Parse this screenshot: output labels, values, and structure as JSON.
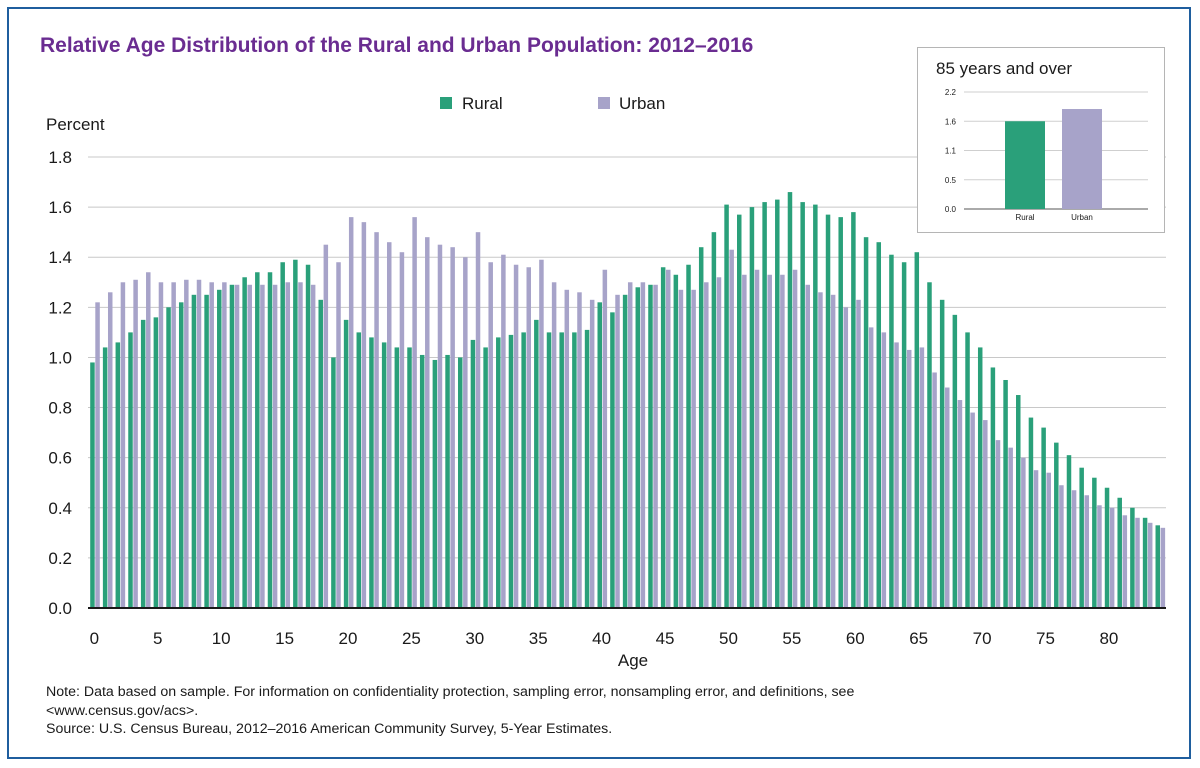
{
  "title": "Relative Age Distribution of the Rural and Urban Population: 2012–2016",
  "notes": {
    "note_line1": "Note: Data based on sample. For information on confidentiality protection, sampling error, nonsampling error, and definitions, see",
    "note_line2": "<www.census.gov/acs>.",
    "source": "Source: U.S. Census Bureau, 2012–2016 American Community Survey, 5-Year Estimates."
  },
  "colors": {
    "rural": "#2aa07a",
    "urban": "#a7a3c9",
    "title": "#6a2c91",
    "frame": "#1f5e9e",
    "grid": "#c8c8c8"
  },
  "chart_data": [
    {
      "type": "bar",
      "ylabel": "Percent",
      "xlabel": "Age",
      "ylim": [
        0,
        1.8
      ],
      "yticks": [
        "0.0",
        "0.2",
        "0.4",
        "0.6",
        "0.8",
        "1.0",
        "1.2",
        "1.4",
        "1.6",
        "1.8"
      ],
      "xtick_labels": [
        "0",
        "5",
        "10",
        "15",
        "20",
        "25",
        "30",
        "35",
        "40",
        "45",
        "50",
        "55",
        "60",
        "65",
        "70",
        "75",
        "80"
      ],
      "grid": true,
      "legend": "top-center",
      "x": [
        0,
        1,
        2,
        3,
        4,
        5,
        6,
        7,
        8,
        9,
        10,
        11,
        12,
        13,
        14,
        15,
        16,
        17,
        18,
        19,
        20,
        21,
        22,
        23,
        24,
        25,
        26,
        27,
        28,
        29,
        30,
        31,
        32,
        33,
        34,
        35,
        36,
        37,
        38,
        39,
        40,
        41,
        42,
        43,
        44,
        45,
        46,
        47,
        48,
        49,
        50,
        51,
        52,
        53,
        54,
        55,
        56,
        57,
        58,
        59,
        60,
        61,
        62,
        63,
        64,
        65,
        66,
        67,
        68,
        69,
        70,
        71,
        72,
        73,
        74,
        75,
        76,
        77,
        78,
        79,
        80,
        81,
        82,
        83,
        84
      ],
      "series": [
        {
          "name": "Rural",
          "values": [
            0.98,
            1.04,
            1.06,
            1.1,
            1.15,
            1.16,
            1.2,
            1.22,
            1.25,
            1.25,
            1.27,
            1.29,
            1.32,
            1.34,
            1.34,
            1.38,
            1.39,
            1.37,
            1.23,
            1.0,
            1.15,
            1.1,
            1.08,
            1.06,
            1.04,
            1.04,
            1.01,
            0.99,
            1.01,
            1.0,
            1.07,
            1.04,
            1.08,
            1.09,
            1.1,
            1.15,
            1.1,
            1.1,
            1.1,
            1.11,
            1.22,
            1.18,
            1.25,
            1.28,
            1.29,
            1.36,
            1.33,
            1.37,
            1.44,
            1.5,
            1.61,
            1.57,
            1.6,
            1.62,
            1.63,
            1.66,
            1.62,
            1.61,
            1.57,
            1.56,
            1.58,
            1.48,
            1.46,
            1.41,
            1.38,
            1.42,
            1.3,
            1.23,
            1.17,
            1.1,
            1.04,
            0.96,
            0.91,
            0.85,
            0.76,
            0.72,
            0.66,
            0.61,
            0.56,
            0.52,
            0.48,
            0.44,
            0.4,
            0.36,
            0.33
          ]
        },
        {
          "name": "Urban",
          "values": [
            1.22,
            1.26,
            1.3,
            1.31,
            1.34,
            1.3,
            1.3,
            1.31,
            1.31,
            1.3,
            1.3,
            1.29,
            1.29,
            1.29,
            1.29,
            1.3,
            1.3,
            1.29,
            1.45,
            1.38,
            1.56,
            1.54,
            1.5,
            1.46,
            1.42,
            1.56,
            1.48,
            1.45,
            1.44,
            1.4,
            1.5,
            1.38,
            1.41,
            1.37,
            1.36,
            1.39,
            1.3,
            1.27,
            1.26,
            1.23,
            1.35,
            1.25,
            1.3,
            1.3,
            1.29,
            1.35,
            1.27,
            1.27,
            1.3,
            1.32,
            1.43,
            1.33,
            1.35,
            1.33,
            1.33,
            1.35,
            1.29,
            1.26,
            1.25,
            1.2,
            1.23,
            1.12,
            1.1,
            1.06,
            1.03,
            1.04,
            0.94,
            0.88,
            0.83,
            0.78,
            0.75,
            0.67,
            0.64,
            0.6,
            0.55,
            0.54,
            0.49,
            0.47,
            0.45,
            0.41,
            0.4,
            0.37,
            0.36,
            0.34,
            0.32
          ]
        }
      ]
    },
    {
      "type": "bar",
      "title": "85 years and over",
      "categories": [
        "Rural",
        "Urban"
      ],
      "values": [
        1.65,
        1.88
      ],
      "ylim": [
        0,
        2.2
      ],
      "yticks": [
        "0.0",
        "0.5",
        "1.1",
        "1.6",
        "2.2"
      ],
      "grid": true
    }
  ]
}
